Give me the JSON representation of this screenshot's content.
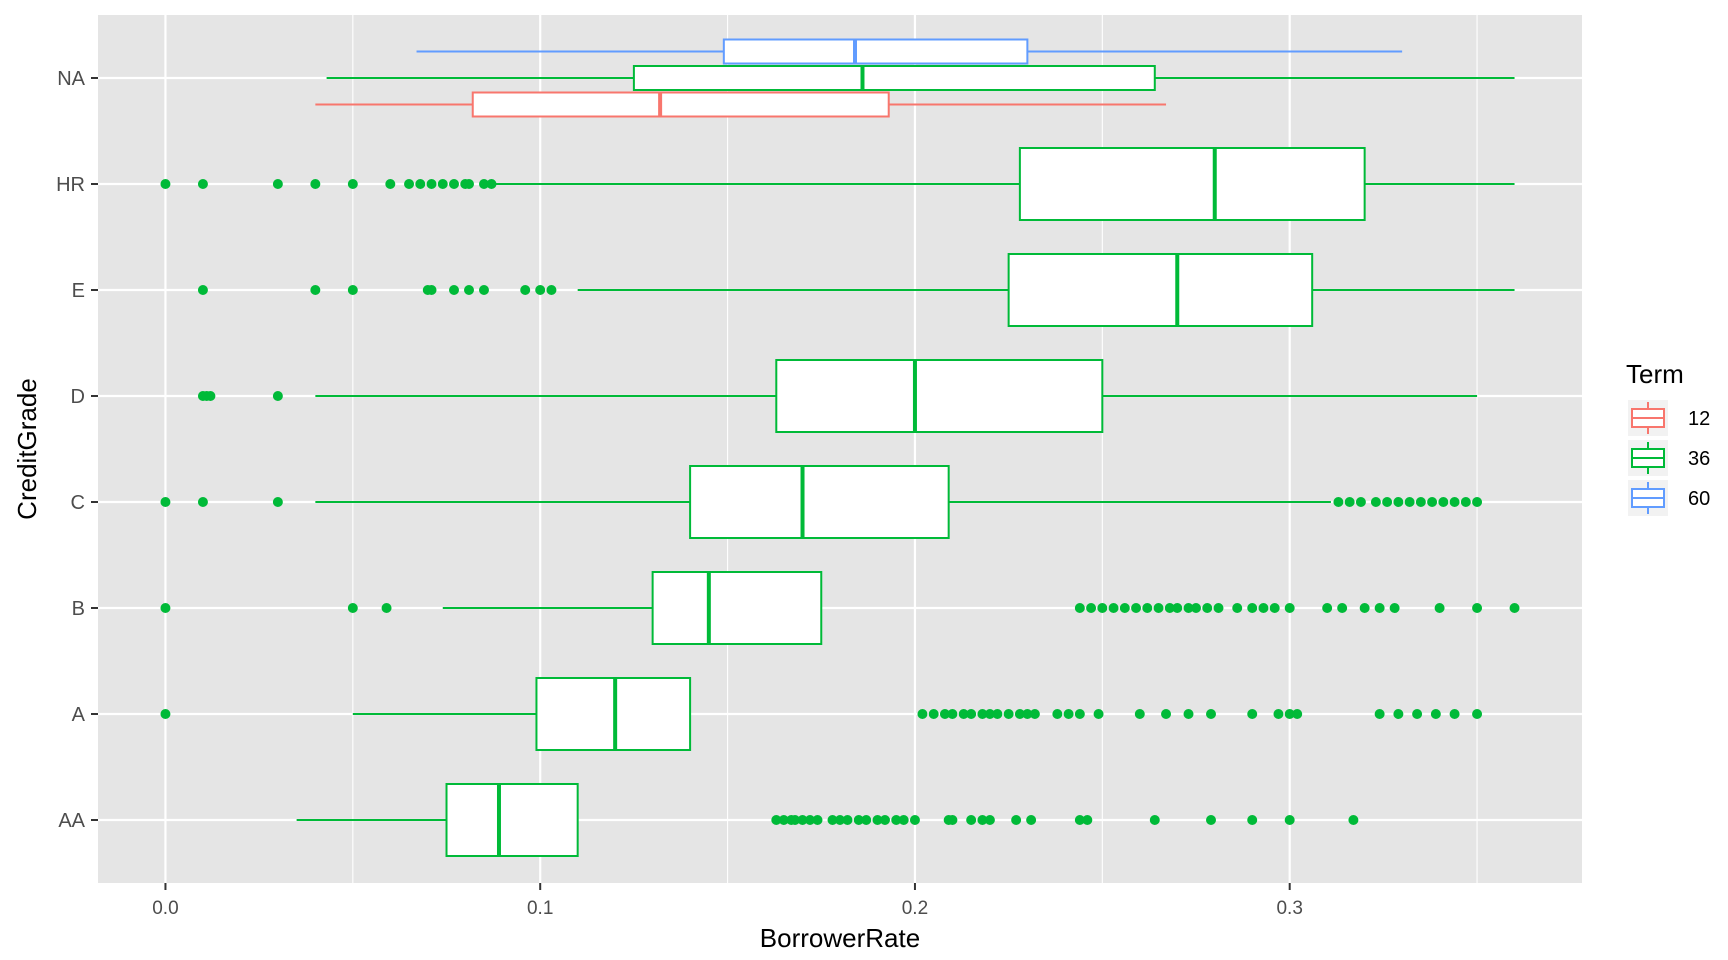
{
  "chart_data": {
    "type": "boxplot",
    "orientation": "horizontal",
    "xlabel": "BorrowerRate",
    "ylabel": "CreditGrade",
    "xlim": [
      -0.018,
      0.378
    ],
    "x_ticks": [
      0.0,
      0.1,
      0.2,
      0.3
    ],
    "x_tick_labels": [
      "0.0",
      "0.1",
      "0.2",
      "0.3"
    ],
    "categories": [
      "AA",
      "A",
      "B",
      "C",
      "D",
      "E",
      "HR",
      "NA"
    ],
    "grid": true,
    "legend": {
      "title": "Term",
      "position": "right",
      "entries": [
        {
          "label": "12",
          "color": "#F8766D"
        },
        {
          "label": "36",
          "color": "#00BA38"
        },
        {
          "label": "60",
          "color": "#619CFF"
        }
      ]
    },
    "colors": {
      "panel_background": "#E5E5E5",
      "grid": "#FFFFFF",
      "box_fill": "#FFFFFF"
    },
    "series": [
      {
        "name": "12",
        "color": "#F8766D",
        "boxes": [
          {
            "category": "NA",
            "whisker_low": 0.04,
            "q1": 0.082,
            "median": 0.132,
            "q3": 0.193,
            "whisker_high": 0.267,
            "outliers": []
          }
        ]
      },
      {
        "name": "36",
        "color": "#00BA38",
        "boxes": [
          {
            "category": "AA",
            "whisker_low": 0.035,
            "q1": 0.075,
            "median": 0.089,
            "q3": 0.11,
            "whisker_high": 0.11,
            "outliers": [
              0.163,
              0.165,
              0.167,
              0.168,
              0.17,
              0.172,
              0.174,
              0.178,
              0.18,
              0.182,
              0.185,
              0.187,
              0.19,
              0.192,
              0.195,
              0.197,
              0.2,
              0.209,
              0.21,
              0.215,
              0.218,
              0.22,
              0.227,
              0.231,
              0.244,
              0.246,
              0.264,
              0.279,
              0.29,
              0.3,
              0.317
            ]
          },
          {
            "category": "A",
            "whisker_low": 0.05,
            "q1": 0.099,
            "median": 0.12,
            "q3": 0.14,
            "whisker_high": 0.14,
            "outliers": [
              0.0,
              0.202,
              0.205,
              0.208,
              0.21,
              0.213,
              0.215,
              0.218,
              0.22,
              0.222,
              0.225,
              0.228,
              0.23,
              0.232,
              0.238,
              0.241,
              0.244,
              0.249,
              0.26,
              0.267,
              0.273,
              0.279,
              0.29,
              0.297,
              0.3,
              0.302,
              0.324,
              0.329,
              0.334,
              0.339,
              0.344,
              0.35
            ]
          },
          {
            "category": "B",
            "whisker_low": 0.074,
            "q1": 0.13,
            "median": 0.145,
            "q3": 0.175,
            "whisker_high": 0.175,
            "outliers": [
              0.0,
              0.05,
              0.059,
              0.244,
              0.247,
              0.25,
              0.253,
              0.256,
              0.259,
              0.262,
              0.265,
              0.268,
              0.27,
              0.273,
              0.275,
              0.278,
              0.281,
              0.286,
              0.29,
              0.293,
              0.296,
              0.3,
              0.31,
              0.314,
              0.32,
              0.324,
              0.328,
              0.34,
              0.35,
              0.36
            ]
          },
          {
            "category": "C",
            "whisker_low": 0.04,
            "q1": 0.14,
            "median": 0.17,
            "q3": 0.209,
            "whisker_high": 0.311,
            "outliers": [
              0.0,
              0.01,
              0.03,
              0.313,
              0.316,
              0.319,
              0.323,
              0.326,
              0.329,
              0.332,
              0.335,
              0.338,
              0.341,
              0.344,
              0.347,
              0.35
            ]
          },
          {
            "category": "D",
            "whisker_low": 0.04,
            "q1": 0.163,
            "median": 0.2,
            "q3": 0.25,
            "whisker_high": 0.35,
            "outliers": [
              0.01,
              0.011,
              0.012,
              0.03
            ]
          },
          {
            "category": "E",
            "whisker_low": 0.11,
            "q1": 0.225,
            "median": 0.27,
            "q3": 0.306,
            "whisker_high": 0.36,
            "outliers": [
              0.01,
              0.04,
              0.05,
              0.07,
              0.071,
              0.077,
              0.081,
              0.085,
              0.096,
              0.1,
              0.103
            ]
          },
          {
            "category": "HR",
            "whisker_low": 0.088,
            "q1": 0.228,
            "median": 0.28,
            "q3": 0.32,
            "whisker_high": 0.36,
            "outliers": [
              0.0,
              0.01,
              0.03,
              0.04,
              0.05,
              0.06,
              0.065,
              0.068,
              0.071,
              0.074,
              0.077,
              0.08,
              0.081,
              0.085,
              0.087
            ]
          },
          {
            "category": "NA",
            "whisker_low": 0.043,
            "q1": 0.125,
            "median": 0.186,
            "q3": 0.264,
            "whisker_high": 0.36,
            "outliers": []
          }
        ]
      },
      {
        "name": "60",
        "color": "#619CFF",
        "boxes": [
          {
            "category": "NA",
            "whisker_low": 0.067,
            "q1": 0.149,
            "median": 0.184,
            "q3": 0.23,
            "whisker_high": 0.33,
            "outliers": []
          }
        ]
      }
    ]
  }
}
